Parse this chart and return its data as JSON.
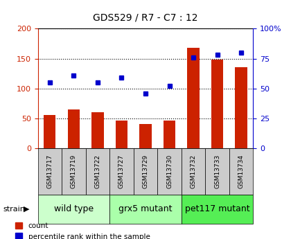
{
  "title": "GDS529 / R7 - C7 : 12",
  "samples": [
    "GSM13717",
    "GSM13719",
    "GSM13722",
    "GSM13727",
    "GSM13729",
    "GSM13730",
    "GSM13732",
    "GSM13733",
    "GSM13734"
  ],
  "counts": [
    55,
    65,
    60,
    46,
    40,
    46,
    168,
    148,
    136
  ],
  "percentile_ranks": [
    55,
    61,
    55,
    59,
    46,
    52,
    76,
    78,
    80
  ],
  "groups": [
    {
      "label": "wild type",
      "start": 0,
      "end": 3,
      "color": "#ccffcc"
    },
    {
      "label": "grx5 mutant",
      "start": 3,
      "end": 6,
      "color": "#aaffaa"
    },
    {
      "label": "pet117 mutant",
      "start": 6,
      "end": 9,
      "color": "#55ee55"
    }
  ],
  "bar_color": "#cc2200",
  "dot_color": "#0000cc",
  "left_axis_color": "#cc2200",
  "right_axis_color": "#0000cc",
  "ylim_left": [
    0,
    200
  ],
  "ylim_right": [
    0,
    100
  ],
  "left_yticks": [
    0,
    50,
    100,
    150,
    200
  ],
  "right_yticks": [
    0,
    25,
    50,
    75,
    100
  ],
  "right_yticklabels": [
    "0",
    "25",
    "50",
    "75",
    "100%"
  ],
  "legend_count_label": "count",
  "legend_pct_label": "percentile rank within the sample",
  "strain_label": "strain",
  "xlabel_bg": "#cccccc",
  "group_label_fontsize": 9,
  "bar_width": 0.5
}
